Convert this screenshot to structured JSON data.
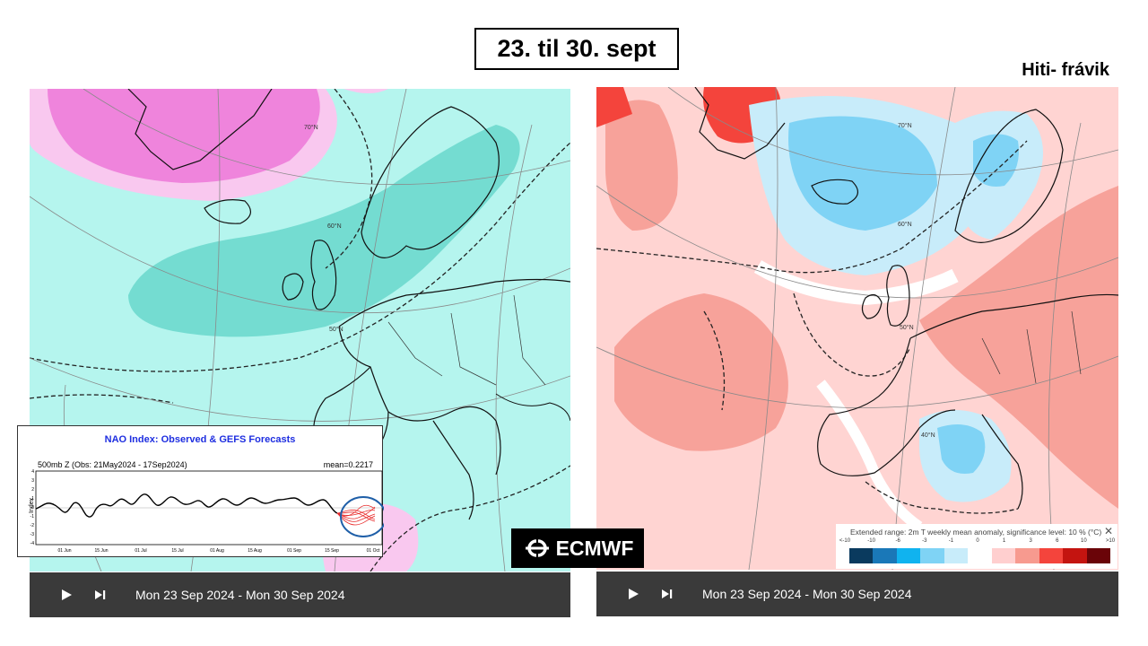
{
  "slide": {
    "title": "23. til 30. sept",
    "right_heading": "Hiti- frávik"
  },
  "left_map": {
    "player": {
      "date_range": "Mon 23 Sep 2024 - Mon 30 Sep 2024",
      "play_icon": "play-icon",
      "next_icon": "skip-next-icon"
    },
    "lat_labels": [
      "70°N",
      "60°N",
      "50°N"
    ]
  },
  "right_map": {
    "player": {
      "date_range": "Mon 23 Sep 2024 - Mon 30 Sep 2024",
      "play_icon": "play-icon",
      "next_icon": "skip-next-icon"
    },
    "lat_labels": [
      "70°N",
      "60°N",
      "50°N",
      "40°N"
    ],
    "legend": {
      "title": "Extended range: 2m T weekly mean anomaly, significance level: 10 % (°C)",
      "close": "✕",
      "labels": [
        "<-10",
        "-10",
        "-6",
        "-3",
        "-1",
        "0",
        "1",
        "3",
        "6",
        "10",
        ">10"
      ],
      "colors": [
        "#0a3a5e",
        "#1a78b8",
        "#10b3ef",
        "#7fd3f5",
        "#c8ecfa",
        "#ffffff",
        "#ffcfcf",
        "#f79a8f",
        "#f4443c",
        "#c41410",
        "#6a0408"
      ]
    }
  },
  "ecmwf_logo": {
    "text": "ECMWF"
  },
  "nao_inset": {
    "title": "NAO Index: Observed & GEFS Forecasts",
    "subtitle": "500mb Z (Obs: 21May2024 - 17Sep2024)",
    "mean": "mean=0.2217",
    "ylabel": "Index",
    "yticks": [
      "4",
      "3",
      "2",
      "1",
      "0",
      "-1",
      "-2",
      "-3",
      "-4"
    ],
    "xticks": [
      "01 Jun",
      "15 Jun",
      "01 Jul",
      "15 Jul",
      "01 Aug",
      "15 Aug",
      "01 Sep",
      "15 Sep",
      "01 Oct"
    ]
  }
}
